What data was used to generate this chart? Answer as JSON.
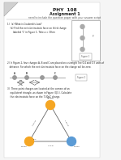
{
  "title": "PHY  108",
  "subtitle": "Assignment 1",
  "instruction": "need to include the question paper with your answer script",
  "q1a": "1)  (a) What is Coulomb's Law?",
  "q1b": "    (b) Find the net electrostatic force on third charge",
  "q1c": "        labeled 'C' in Figure 1. Take a = 30cm",
  "q2a": "2) In Figure 2, four charges A, B and C are placed on a straight line 0.4 and 0.3 units of",
  "q2b": "   distance. For which the net electrostatic force on the charge will be zero.",
  "q3a": "3)  Three point charges are located at the corners of an",
  "q3b": "    equilateral triangle, as shown in Figure (Q3.). Calculate",
  "q3c": "    the electrostatic force on the 7.00μC charge.",
  "fig1_label": "Figure 1",
  "fig2_label": "Figure 2",
  "angle_label": "60.0°",
  "side_left": "0.500 m",
  "side_bottom": "1.00 m",
  "side_right": "0.500 m",
  "charge_top_label": "0.500μC",
  "charge_bl_label": "2.00μC",
  "charge_br_label": "7.00μC",
  "orange": "#f5a623",
  "blue": "#5b9bd5",
  "bg": "#ffffff",
  "page_bg": "#f5f5f5"
}
